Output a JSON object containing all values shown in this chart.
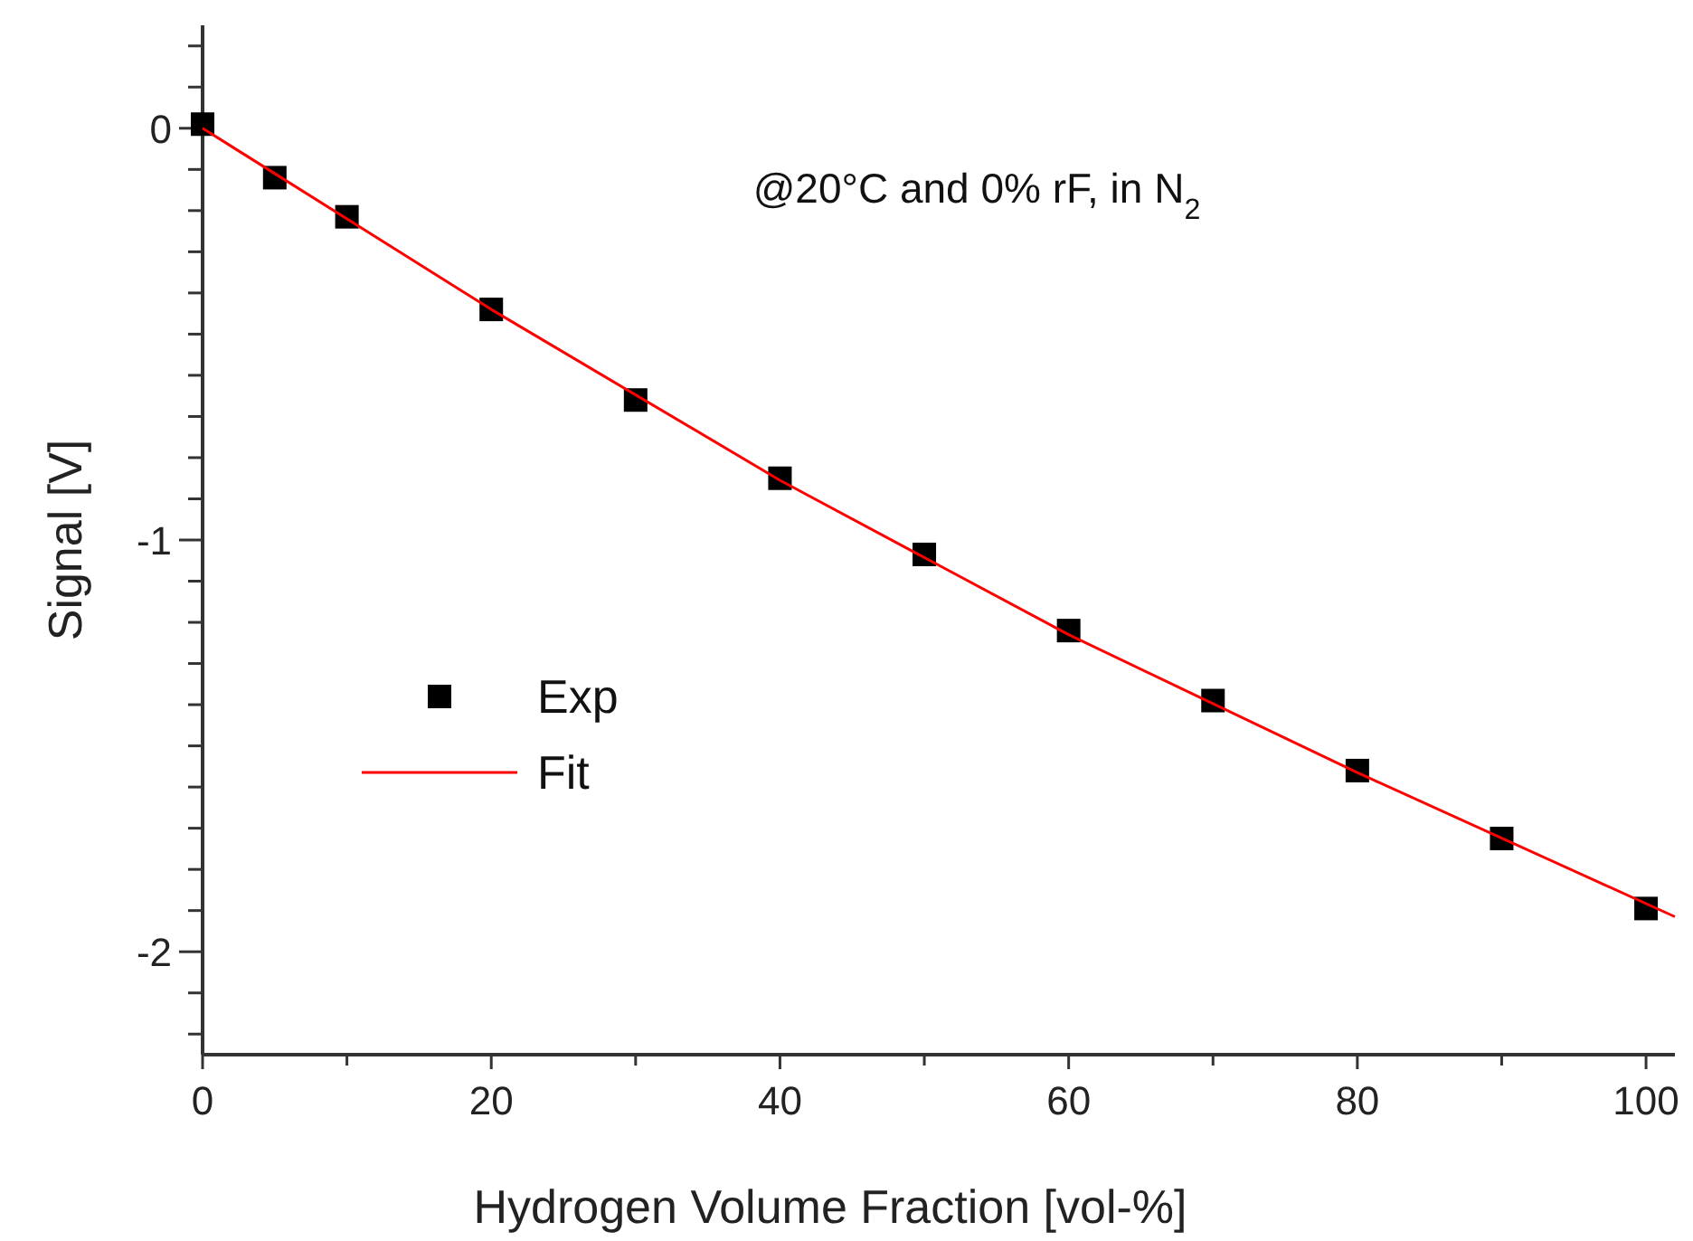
{
  "chart_data": {
    "type": "scatter",
    "xlabel": "Hydrogen Volume Fraction [vol-%]",
    "ylabel": "Signal [V]",
    "annotations": [
      "@20°C and 0% rF, in N$_{2}$"
    ],
    "xlim": [
      0,
      102
    ],
    "ylim": [
      -2.25,
      0.25
    ],
    "xticks": [
      0,
      {
        "value": 10,
        "label": null
      },
      20,
      {
        "value": 30,
        "label": null
      },
      40,
      {
        "value": 50,
        "label": null
      },
      60,
      {
        "value": 70,
        "label": null
      },
      80,
      {
        "value": 90,
        "label": null
      },
      100
    ],
    "yticks": [
      {
        "value": 0.2,
        "label": null
      },
      {
        "value": 0.1,
        "label": null
      },
      0,
      {
        "value": -0.1,
        "label": null
      },
      {
        "value": -0.2,
        "label": null
      },
      {
        "value": -0.3,
        "label": null
      },
      {
        "value": -0.4,
        "label": null
      },
      {
        "value": -0.5,
        "label": null
      },
      {
        "value": -0.6,
        "label": null
      },
      {
        "value": -0.7,
        "label": null
      },
      {
        "value": -0.8,
        "label": null
      },
      {
        "value": -0.9,
        "label": null
      },
      -1,
      {
        "value": -1.1,
        "label": null
      },
      {
        "value": -1.2,
        "label": null
      },
      {
        "value": -1.3,
        "label": null
      },
      {
        "value": -1.4,
        "label": null
      },
      {
        "value": -1.5,
        "label": null
      },
      {
        "value": -1.6,
        "label": null
      },
      {
        "value": -1.7,
        "label": null
      },
      {
        "value": -1.8,
        "label": null
      },
      {
        "value": -1.9,
        "label": null
      },
      -2,
      {
        "value": -2.1,
        "label": null
      },
      {
        "value": -2.2,
        "label": null
      }
    ],
    "grid": false,
    "legend": "left",
    "marker": "square",
    "series": [
      {
        "name": "Exp",
        "color": "#000000",
        "x": [
          0,
          5,
          10,
          20,
          30,
          40,
          50,
          60,
          70,
          80,
          90,
          100
        ],
        "values": [
          0.01,
          -0.12,
          -0.215,
          -0.44,
          -0.66,
          -0.85,
          -1.035,
          -1.22,
          -1.39,
          -1.56,
          -1.725,
          -1.895
        ]
      },
      {
        "name": "Fit",
        "type": "line",
        "color": "#ff0000",
        "line_style": "solid",
        "marker": "none",
        "x": [
          0,
          20,
          40,
          60,
          80,
          102
        ],
        "values": [
          0,
          -0.44,
          -0.855,
          -1.23,
          -1.565,
          -1.915
        ]
      }
    ]
  }
}
